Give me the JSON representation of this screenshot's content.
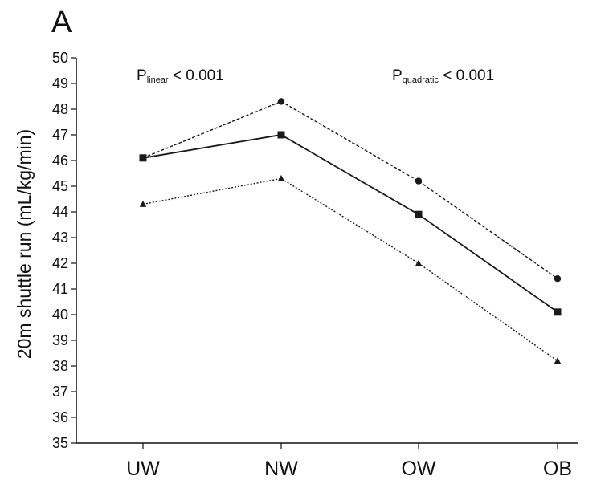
{
  "chart_data": {
    "type": "line",
    "panel_label": "A",
    "title": "",
    "xlabel": "",
    "ylabel": "20m shuttle run (mL/kg/min)",
    "ylim": [
      35,
      50
    ],
    "yticks": [
      35,
      36,
      37,
      38,
      39,
      40,
      41,
      42,
      43,
      44,
      45,
      46,
      47,
      48,
      49,
      50
    ],
    "categories": [
      "UW",
      "NW",
      "OW",
      "OB"
    ],
    "series": [
      {
        "values": [
          46.1,
          48.3,
          45.2,
          41.4
        ],
        "marker": "circle",
        "dash": "4,2"
      },
      {
        "values": [
          46.1,
          47.0,
          43.9,
          40.1
        ],
        "marker": "square",
        "dash": ""
      },
      {
        "values": [
          44.3,
          45.3,
          42.0,
          38.2
        ],
        "marker": "triangle",
        "dash": "2,2"
      }
    ],
    "annotations": [
      {
        "main": "P",
        "sub": "linear",
        "rest": " < 0.001"
      },
      {
        "main": "P",
        "sub": "quadratic",
        "rest": " < 0.001"
      }
    ],
    "grid": false,
    "legend": "none",
    "colors": {
      "line": "#1a1a1a",
      "axis": "#111111"
    }
  }
}
